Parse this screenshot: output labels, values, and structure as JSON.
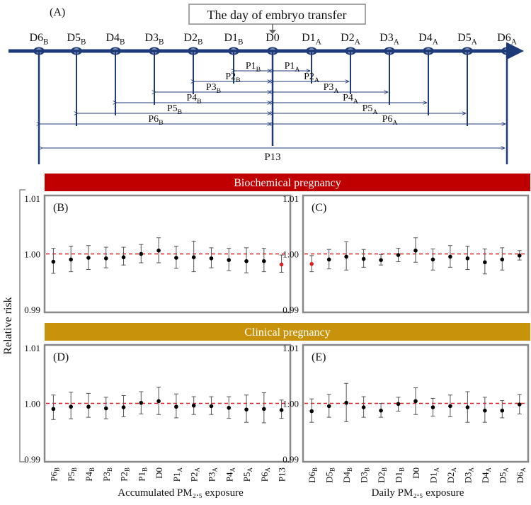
{
  "colors": {
    "axis_blue": "#1f3a78",
    "bio_band": "#c00000",
    "clin_band": "#c8920a",
    "red_dashed": "#e02020",
    "panel_border": "#888888"
  },
  "timeline": {
    "panel_label": "(A)",
    "title": "The day of embryo transfer",
    "days": [
      {
        "base": "D6",
        "sub": "B"
      },
      {
        "base": "D5",
        "sub": "B"
      },
      {
        "base": "D4",
        "sub": "B"
      },
      {
        "base": "D3",
        "sub": "B"
      },
      {
        "base": "D2",
        "sub": "B"
      },
      {
        "base": "D1",
        "sub": "B"
      },
      {
        "base": "D0",
        "sub": ""
      },
      {
        "base": "D1",
        "sub": "A"
      },
      {
        "base": "D2",
        "sub": "A"
      },
      {
        "base": "D3",
        "sub": "A"
      },
      {
        "base": "D4",
        "sub": "A"
      },
      {
        "base": "D5",
        "sub": "A"
      },
      {
        "base": "D6",
        "sub": "A"
      }
    ],
    "periods": [
      {
        "base": "P1",
        "sub": "B",
        "day": 1,
        "side": "before"
      },
      {
        "base": "P2",
        "sub": "B",
        "day": 2,
        "side": "before"
      },
      {
        "base": "P3",
        "sub": "B",
        "day": 3,
        "side": "before"
      },
      {
        "base": "P4",
        "sub": "B",
        "day": 4,
        "side": "before"
      },
      {
        "base": "P5",
        "sub": "B",
        "day": 5,
        "side": "before"
      },
      {
        "base": "P6",
        "sub": "B",
        "day": 6,
        "side": "before"
      },
      {
        "base": "P1",
        "sub": "A",
        "day": 1,
        "side": "after"
      },
      {
        "base": "P2",
        "sub": "A",
        "day": 2,
        "side": "after"
      },
      {
        "base": "P3",
        "sub": "A",
        "day": 3,
        "side": "after"
      },
      {
        "base": "P4",
        "sub": "A",
        "day": 4,
        "side": "after"
      },
      {
        "base": "P5",
        "sub": "A",
        "day": 5,
        "side": "after"
      },
      {
        "base": "P6",
        "sub": "A",
        "day": 6,
        "side": "after"
      }
    ],
    "total_period": "P13"
  },
  "bands": {
    "biochemical": "Biochemical pregnancy",
    "clinical": "Clinical pregnancy"
  },
  "y_axis_label": "Relative risk",
  "x_labels": {
    "accumulated": "Accumulated PM₂.₅ exposure",
    "daily": "Daily PM₂.₅ exposure"
  },
  "chart_data": [
    {
      "panel": "(B)",
      "type": "scatter",
      "errorbars": true,
      "ylim": [
        0.99,
        1.01
      ],
      "yticks": [
        "0.99",
        "1.00",
        "1.01"
      ],
      "reference_line": 1.0,
      "categories": [
        "P6B",
        "P5B",
        "P4B",
        "P3B",
        "P2B",
        "P1B",
        "D0",
        "P1A",
        "P2A",
        "P3A",
        "P4A",
        "P5A",
        "P6A",
        "P13"
      ],
      "est": [
        0.9986,
        0.999,
        0.9993,
        0.9992,
        0.9994,
        1.0,
        1.0006,
        0.9993,
        0.9994,
        0.9992,
        0.9989,
        0.9987,
        0.9987,
        0.9981
      ],
      "lower": [
        0.9965,
        0.9968,
        0.9972,
        0.9975,
        0.998,
        0.9984,
        0.9984,
        0.9974,
        0.9968,
        0.9975,
        0.997,
        0.9966,
        0.9968,
        0.9967
      ],
      "upper": [
        1.001,
        1.0014,
        1.0015,
        1.0012,
        1.0012,
        1.0017,
        1.0029,
        1.0014,
        1.0023,
        1.0011,
        1.001,
        1.0011,
        1.001,
        0.9998
      ],
      "highlight": [
        13
      ]
    },
    {
      "panel": "(C)",
      "type": "scatter",
      "errorbars": true,
      "ylim": [
        0.99,
        1.01
      ],
      "yticks": [
        "0.99",
        "1.00",
        "1.01"
      ],
      "reference_line": 1.0,
      "categories": [
        "D6B",
        "D5B",
        "D4B",
        "D3B",
        "D2B",
        "D1B",
        "D0",
        "D1A",
        "D2A",
        "D3A",
        "D4A",
        "D5A",
        "D6A"
      ],
      "est": [
        0.9982,
        0.999,
        0.9995,
        0.9991,
        0.9989,
        0.9998,
        1.0006,
        0.999,
        0.9995,
        0.9992,
        0.9985,
        0.999,
        0.9997
      ],
      "lower": [
        0.9968,
        0.9973,
        0.9971,
        0.9976,
        0.998,
        0.9986,
        0.9985,
        0.9971,
        0.9976,
        0.9972,
        0.9964,
        0.9971,
        0.9989
      ],
      "upper": [
        0.9997,
        1.0008,
        1.0022,
        1.0008,
        0.9999,
        1.001,
        1.0029,
        1.0009,
        1.0015,
        1.0014,
        1.0009,
        1.0011,
        1.0006
      ],
      "highlight": [
        0
      ]
    },
    {
      "panel": "(D)",
      "type": "scatter",
      "errorbars": true,
      "ylim": [
        0.99,
        1.01
      ],
      "yticks": [
        "0.99",
        "1.00",
        "1.01"
      ],
      "reference_line": 1.0,
      "categories": [
        "P6B",
        "P5B",
        "P4B",
        "P3B",
        "P2B",
        "P1B",
        "D0",
        "P1A",
        "P2A",
        "P3A",
        "P4A",
        "P5A",
        "P6A",
        "P13"
      ],
      "est": [
        0.999,
        0.9994,
        0.9994,
        0.9991,
        0.9993,
        1.0001,
        1.0004,
        0.9994,
        0.9996,
        0.9995,
        0.9992,
        0.9989,
        0.999,
        0.9988
      ],
      "lower": [
        0.9971,
        0.9972,
        0.9975,
        0.9972,
        0.9976,
        0.9981,
        0.998,
        0.9974,
        0.998,
        0.998,
        0.9973,
        0.9966,
        0.9965,
        0.9973
      ],
      "upper": [
        1.0015,
        1.002,
        1.0018,
        1.0011,
        1.0014,
        1.0021,
        1.0029,
        1.0017,
        1.0012,
        1.0012,
        1.0012,
        1.0015,
        1.0019,
        1.0006
      ],
      "highlight": []
    },
    {
      "panel": "(E)",
      "type": "scatter",
      "errorbars": true,
      "ylim": [
        0.99,
        1.01
      ],
      "yticks": [
        "0.99",
        "1.00",
        "1.01"
      ],
      "reference_line": 1.0,
      "categories": [
        "D6B",
        "D5B",
        "D4B",
        "D3B",
        "D2B",
        "D1B",
        "D0",
        "D1A",
        "D2A",
        "D3A",
        "D4A",
        "D5A",
        "D6A"
      ],
      "est": [
        0.9986,
        0.9995,
        1.0001,
        0.9993,
        0.9987,
        0.9999,
        1.0004,
        0.9993,
        0.9995,
        0.9993,
        0.9987,
        0.9987,
        0.9998
      ],
      "lower": [
        0.9966,
        0.9975,
        0.9967,
        0.9975,
        0.9975,
        0.9986,
        0.998,
        0.9977,
        0.9976,
        0.9966,
        0.9966,
        0.9974,
        0.9981
      ],
      "upper": [
        1.0008,
        1.0016,
        1.0036,
        1.0012,
        1.0,
        1.0011,
        1.0028,
        1.0009,
        1.0015,
        1.0021,
        1.0011,
        1.0005,
        1.0016
      ],
      "highlight": []
    }
  ]
}
